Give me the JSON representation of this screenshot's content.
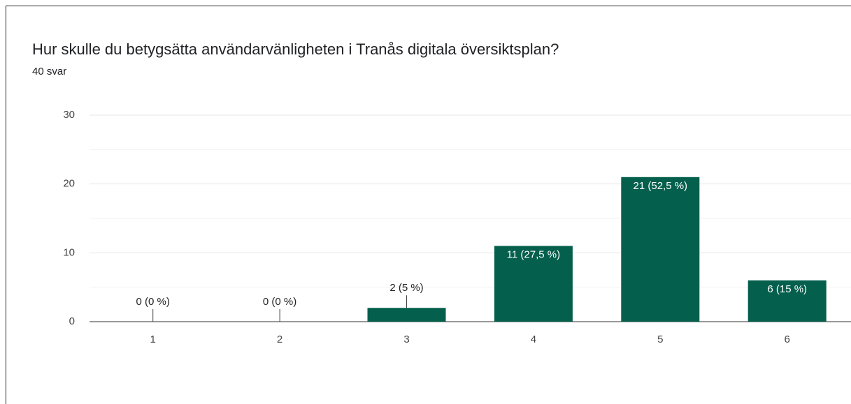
{
  "chart_data": {
    "type": "bar",
    "title": "Hur skulle du betygsätta användarvänligheten i Tranås digitala översiktsplan?",
    "subtitle": "40 svar",
    "categories": [
      "1",
      "2",
      "3",
      "4",
      "5",
      "6"
    ],
    "values": [
      0,
      0,
      2,
      11,
      21,
      6
    ],
    "value_labels": [
      "0 (0 %)",
      "0 (0 %)",
      "2 (5 %)",
      "11 (27,5 %)",
      "21 (52,5 %)",
      "6 (15 %)"
    ],
    "color": "#045f4c",
    "ylim": [
      0,
      30
    ],
    "yticks": [
      0,
      10,
      20,
      30
    ],
    "minor_yticks": [
      5,
      15,
      25
    ],
    "grid": true
  }
}
